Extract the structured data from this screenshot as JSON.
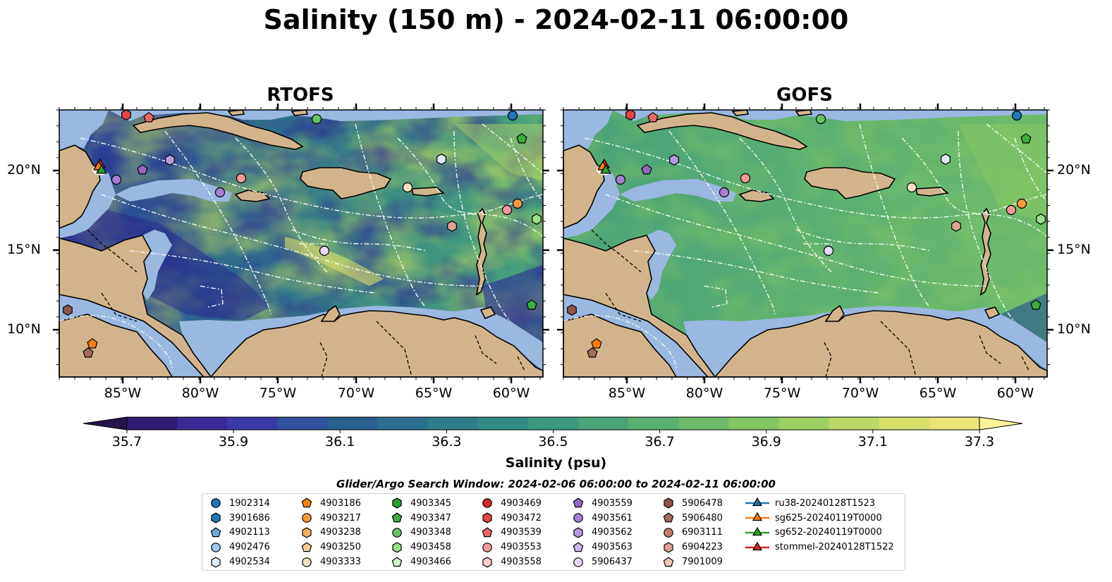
{
  "title": "Salinity (150 m) - 2024-02-11 06:00:00",
  "panels": [
    {
      "title": "RTOFS",
      "style": "rtofs"
    },
    {
      "title": "GOFS",
      "style": "gofs"
    }
  ],
  "axes": {
    "lon_ticks": [
      "85°W",
      "80°W",
      "75°W",
      "70°W",
      "65°W",
      "60°W"
    ],
    "lat_ticks": [
      "20°N",
      "15°N",
      "10°N"
    ]
  },
  "colorbar": {
    "label": "Salinity (psu)",
    "ticks": [
      "35.7",
      "35.9",
      "36.1",
      "36.3",
      "36.5",
      "36.7",
      "36.9",
      "37.1",
      "37.3"
    ],
    "colors": [
      "#2e1a72",
      "#3a2a96",
      "#3b3aa8",
      "#32509e",
      "#2a6090",
      "#2b6f8c",
      "#2d7e88",
      "#338c84",
      "#3c987f",
      "#4aa47a",
      "#5ab073",
      "#6cbb6c",
      "#84c566",
      "#9ecf63",
      "#bcd864",
      "#d6e06a",
      "#eae577"
    ],
    "extend_low": "#241548",
    "extend_high": "#fbf39a"
  },
  "search_window": "Glider/Argo Search Window: 2024-02-06 06:00:00 to 2024-02-11 06:00:00",
  "legend": [
    {
      "label": "1902314",
      "color": "#1f77b4",
      "marker": "circle"
    },
    {
      "label": "3901686",
      "color": "#1f77b4",
      "marker": "hexagon"
    },
    {
      "label": "4902113",
      "color": "#6fa8dc",
      "marker": "pentagon"
    },
    {
      "label": "4902476",
      "color": "#9ecae9",
      "marker": "circle"
    },
    {
      "label": "4902534",
      "color": "#deebf7",
      "marker": "hexagon"
    },
    {
      "label": "4903186",
      "color": "#ff7f0e",
      "marker": "pentagon"
    },
    {
      "label": "4903217",
      "color": "#ff9a3c",
      "marker": "circle"
    },
    {
      "label": "4903238",
      "color": "#ffae5e",
      "marker": "hexagon"
    },
    {
      "label": "4903250",
      "color": "#ffc890",
      "marker": "pentagon"
    },
    {
      "label": "4903333",
      "color": "#ffe2c4",
      "marker": "circle"
    },
    {
      "label": "4903345",
      "color": "#2ca02c",
      "marker": "hexagon"
    },
    {
      "label": "4903347",
      "color": "#3cae3c",
      "marker": "pentagon"
    },
    {
      "label": "4903348",
      "color": "#60c460",
      "marker": "circle"
    },
    {
      "label": "4903458",
      "color": "#98df8a",
      "marker": "hexagon"
    },
    {
      "label": "4903466",
      "color": "#d4f5cc",
      "marker": "pentagon"
    },
    {
      "label": "4903469",
      "color": "#d62728",
      "marker": "circle"
    },
    {
      "label": "4903472",
      "color": "#e04545",
      "marker": "hexagon"
    },
    {
      "label": "4903539",
      "color": "#ea6666",
      "marker": "pentagon"
    },
    {
      "label": "4903553",
      "color": "#f59a9a",
      "marker": "circle"
    },
    {
      "label": "4903558",
      "color": "#ffcccc",
      "marker": "hexagon"
    },
    {
      "label": "4903559",
      "color": "#9467bd",
      "marker": "pentagon"
    },
    {
      "label": "4903561",
      "color": "#a77fd0",
      "marker": "circle"
    },
    {
      "label": "4903562",
      "color": "#b897dc",
      "marker": "hexagon"
    },
    {
      "label": "4903563",
      "color": "#cdb6ea",
      "marker": "pentagon"
    },
    {
      "label": "5906437",
      "color": "#e9d8f7",
      "marker": "circle"
    },
    {
      "label": "5906478",
      "color": "#8c564b",
      "marker": "hexagon"
    },
    {
      "label": "5906480",
      "color": "#a46a5c",
      "marker": "pentagon"
    },
    {
      "label": "6903111",
      "color": "#c07e6e",
      "marker": "circle"
    },
    {
      "label": "6904223",
      "color": "#dca294",
      "marker": "hexagon"
    },
    {
      "label": "7901009",
      "color": "#f5c8bc",
      "marker": "pentagon"
    },
    {
      "label": "ru38-20240128T1523",
      "color": "#1f77b4",
      "marker": "triangle-line"
    },
    {
      "label": "sg625-20240119T0000",
      "color": "#ff7f0e",
      "marker": "triangle-line"
    },
    {
      "label": "sg652-20240119T0000",
      "color": "#2ca02c",
      "marker": "triangle-line"
    },
    {
      "label": "stommel-20240128T1522",
      "color": "#d62728",
      "marker": "triangle-line"
    }
  ]
}
